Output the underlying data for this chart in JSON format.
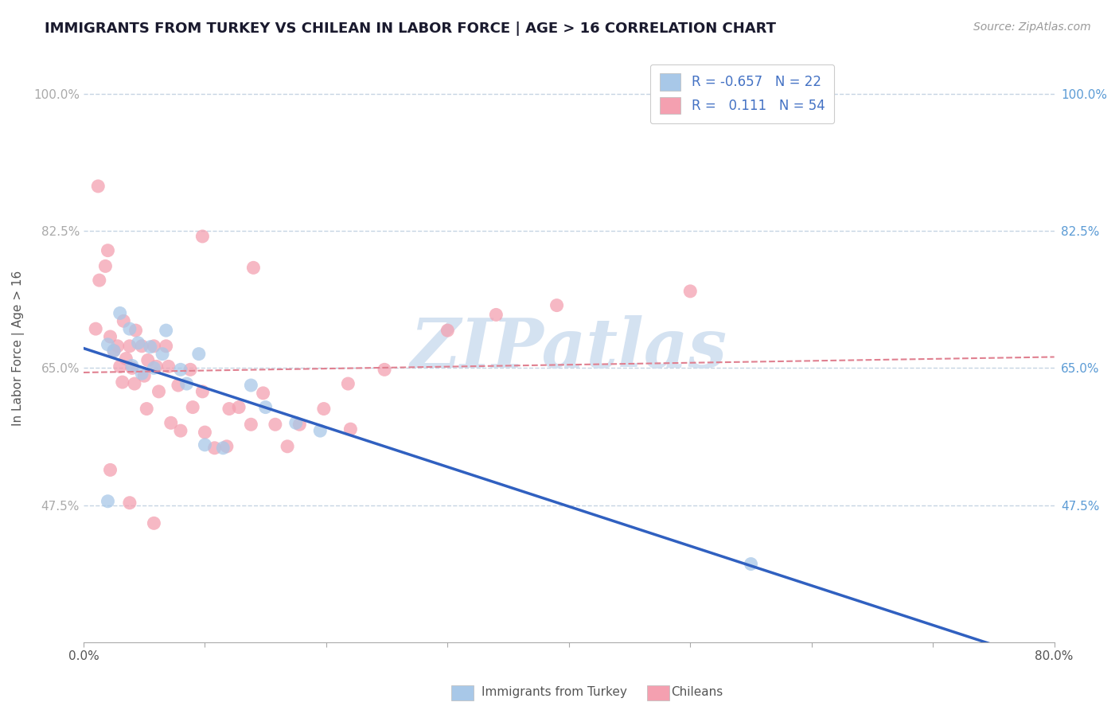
{
  "title": "IMMIGRANTS FROM TURKEY VS CHILEAN IN LABOR FORCE | AGE > 16 CORRELATION CHART",
  "source": "Source: ZipAtlas.com",
  "ylabel": "In Labor Force | Age > 16",
  "xlim": [
    0.0,
    0.8
  ],
  "ylim": [
    0.3,
    1.05
  ],
  "x_tick_positions": [
    0.0,
    0.1,
    0.2,
    0.3,
    0.4,
    0.5,
    0.6,
    0.7,
    0.8
  ],
  "x_tick_labels_show": [
    "0.0%",
    "",
    "",
    "",
    "",
    "",
    "",
    "",
    "80.0%"
  ],
  "y_tick_positions": [
    0.475,
    0.65,
    0.825,
    1.0
  ],
  "y_tick_labels": [
    "47.5%",
    "65.0%",
    "82.5%",
    "100.0%"
  ],
  "turkey_r": -0.657,
  "turkey_n": 22,
  "chilean_r": 0.111,
  "chilean_n": 54,
  "turkey_color": "#a8c8e8",
  "chilean_color": "#f4a0b0",
  "turkey_line_color": "#3060c0",
  "chilean_line_color": "#e08090",
  "background_color": "#ffffff",
  "grid_color": "#c0d0e0",
  "watermark_text": "ZIPatlas",
  "watermark_color": "#d0dff0",
  "title_color": "#1a1a2e",
  "axis_label_color": "#555555",
  "tick_color_left": "#aaaaaa",
  "tick_color_right": "#5b9bd5",
  "right_label_color": "#5b9bd5",
  "turkey_points": [
    [
      0.02,
      0.68
    ],
    [
      0.025,
      0.672
    ],
    [
      0.03,
      0.72
    ],
    [
      0.038,
      0.7
    ],
    [
      0.04,
      0.653
    ],
    [
      0.045,
      0.682
    ],
    [
      0.048,
      0.643
    ],
    [
      0.055,
      0.677
    ],
    [
      0.058,
      0.65
    ],
    [
      0.065,
      0.668
    ],
    [
      0.068,
      0.698
    ],
    [
      0.08,
      0.648
    ],
    [
      0.085,
      0.63
    ],
    [
      0.095,
      0.668
    ],
    [
      0.1,
      0.552
    ],
    [
      0.115,
      0.548
    ],
    [
      0.138,
      0.628
    ],
    [
      0.15,
      0.6
    ],
    [
      0.175,
      0.58
    ],
    [
      0.195,
      0.57
    ],
    [
      0.55,
      0.4
    ],
    [
      0.02,
      0.48
    ]
  ],
  "chilean_points": [
    [
      0.01,
      0.7
    ],
    [
      0.013,
      0.762
    ],
    [
      0.018,
      0.78
    ],
    [
      0.02,
      0.8
    ],
    [
      0.022,
      0.69
    ],
    [
      0.025,
      0.672
    ],
    [
      0.028,
      0.678
    ],
    [
      0.03,
      0.652
    ],
    [
      0.032,
      0.632
    ],
    [
      0.033,
      0.71
    ],
    [
      0.035,
      0.662
    ],
    [
      0.038,
      0.678
    ],
    [
      0.04,
      0.65
    ],
    [
      0.042,
      0.63
    ],
    [
      0.043,
      0.698
    ],
    [
      0.048,
      0.678
    ],
    [
      0.05,
      0.64
    ],
    [
      0.052,
      0.598
    ],
    [
      0.053,
      0.66
    ],
    [
      0.058,
      0.678
    ],
    [
      0.06,
      0.652
    ],
    [
      0.062,
      0.62
    ],
    [
      0.068,
      0.678
    ],
    [
      0.07,
      0.652
    ],
    [
      0.072,
      0.58
    ],
    [
      0.078,
      0.628
    ],
    [
      0.08,
      0.57
    ],
    [
      0.088,
      0.648
    ],
    [
      0.09,
      0.6
    ],
    [
      0.098,
      0.62
    ],
    [
      0.1,
      0.568
    ],
    [
      0.108,
      0.548
    ],
    [
      0.118,
      0.55
    ],
    [
      0.12,
      0.598
    ],
    [
      0.128,
      0.6
    ],
    [
      0.138,
      0.578
    ],
    [
      0.148,
      0.618
    ],
    [
      0.158,
      0.578
    ],
    [
      0.168,
      0.55
    ],
    [
      0.178,
      0.578
    ],
    [
      0.198,
      0.598
    ],
    [
      0.218,
      0.63
    ],
    [
      0.22,
      0.572
    ],
    [
      0.248,
      0.648
    ],
    [
      0.012,
      0.882
    ],
    [
      0.098,
      0.818
    ],
    [
      0.14,
      0.778
    ],
    [
      0.022,
      0.52
    ],
    [
      0.038,
      0.478
    ],
    [
      0.058,
      0.452
    ],
    [
      0.3,
      0.698
    ],
    [
      0.34,
      0.718
    ],
    [
      0.39,
      0.73
    ],
    [
      0.5,
      0.748
    ]
  ],
  "legend_text1": "R = -0.657   N = 22",
  "legend_text2": "R =   0.111   N = 54"
}
